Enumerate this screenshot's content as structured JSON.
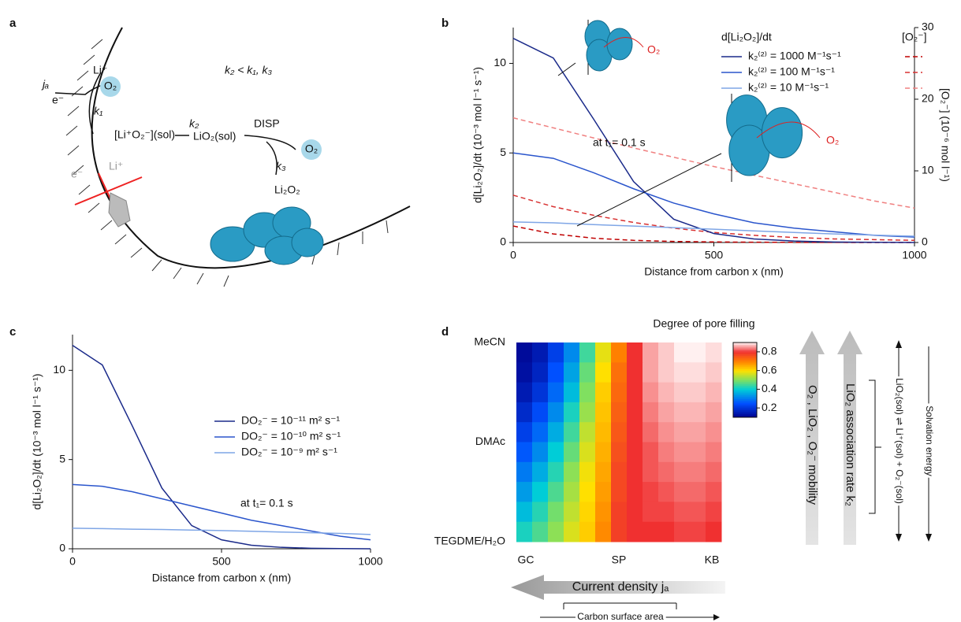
{
  "diagram_a": {
    "panel": "a",
    "ja": "jₐ",
    "e_in": "e⁻",
    "li_plus": "Li⁺",
    "o2_top": "O₂",
    "k1": "k₁",
    "complex": "[Li⁺O₂⁻](sol)",
    "k2": "k₂",
    "lio2": "LiO₂(sol)",
    "disp": "DISP",
    "o2_right": "O₂",
    "k3": "k₃",
    "li2o2": "Li₂O₂",
    "relation": "k₂ < k₁, k₃",
    "e_blocked": "e⁻",
    "li_blocked": "Li⁺"
  },
  "chart_data": [
    {
      "type": "line",
      "panel": "b",
      "annotation": "at t₁= 0.1 s",
      "inset_label_1": "O₂",
      "inset_label_2": "O₂",
      "xlabel": "Distance from carbon x (nm)",
      "ylabel": "d[Li₂O₂]/dt (10⁻³ mol l⁻¹ s⁻¹)",
      "y2label": "[O₂⁻] (10⁻⁶ mol l⁻¹)",
      "legend_titles": [
        "d[Li₂O₂]/dt",
        "[O₂⁻]"
      ],
      "x": [
        0,
        100,
        200,
        300,
        400,
        500,
        600,
        700,
        800,
        900,
        1000
      ],
      "xlim": [
        0,
        1000
      ],
      "xticks": [
        0,
        500,
        1000
      ],
      "ylim": [
        0,
        12
      ],
      "yticks": [
        0,
        5,
        10
      ],
      "y2lim": [
        0,
        30
      ],
      "y2ticks": [
        0,
        10,
        20,
        30
      ],
      "series": [
        {
          "name": "k₂⁽²⁾ = 1000 M⁻¹s⁻¹",
          "color": "#1a2a8a",
          "values": [
            11.4,
            10.3,
            6.9,
            3.4,
            1.3,
            0.5,
            0.2,
            0.08,
            0.03,
            0.01,
            0
          ]
        },
        {
          "name": "k₂⁽²⁾ = 100 M⁻¹s⁻¹",
          "color": "#2a55cc",
          "values": [
            5.0,
            4.7,
            3.9,
            3.0,
            2.2,
            1.6,
            1.1,
            0.8,
            0.6,
            0.4,
            0.3
          ]
        },
        {
          "name": "k₂⁽²⁾ = 10 M⁻¹s⁻¹",
          "color": "#7fa6e6",
          "values": [
            1.15,
            1.1,
            1.0,
            0.92,
            0.83,
            0.74,
            0.65,
            0.56,
            0.48,
            0.41,
            0.35
          ]
        }
      ],
      "o2_series": [
        {
          "color": "#c00000",
          "axis": "y2",
          "values": [
            2.3,
            1.2,
            0.6,
            0.3,
            0.15,
            0.08,
            0.04,
            0.02,
            0.01,
            0,
            0
          ]
        },
        {
          "color": "#d83030",
          "axis": "y2",
          "values": [
            6.6,
            5.0,
            3.8,
            2.8,
            2.0,
            1.4,
            1.0,
            0.7,
            0.5,
            0.4,
            0.3
          ]
        },
        {
          "color": "#f08080",
          "axis": "y2",
          "values": [
            17.4,
            16.0,
            14.6,
            13.2,
            11.9,
            10.6,
            9.4,
            8.2,
            7.0,
            5.8,
            4.8
          ]
        }
      ]
    },
    {
      "type": "line",
      "panel": "c",
      "annotation": "at t₁= 0.1 s",
      "xlabel": "Distance from carbon x (nm)",
      "ylabel": "d[Li₂O₂]/dt (10⁻³ mol l⁻¹ s⁻¹)",
      "x": [
        0,
        100,
        200,
        300,
        400,
        500,
        600,
        700,
        800,
        900,
        1000
      ],
      "xlim": [
        0,
        1000
      ],
      "xticks": [
        0,
        500,
        1000
      ],
      "ylim": [
        0,
        12
      ],
      "yticks": [
        0,
        5,
        10
      ],
      "series": [
        {
          "name": "DO₂⁻ = 10⁻¹¹ m² s⁻¹",
          "color": "#1a2a8a",
          "values": [
            11.4,
            10.3,
            6.9,
            3.4,
            1.3,
            0.5,
            0.2,
            0.08,
            0.03,
            0.01,
            0
          ]
        },
        {
          "name": "DO₂⁻ = 10⁻¹⁰ m² s⁻¹",
          "color": "#2a55cc",
          "values": [
            3.6,
            3.5,
            3.2,
            2.8,
            2.4,
            2.0,
            1.6,
            1.3,
            1.0,
            0.7,
            0.5
          ]
        },
        {
          "name": "DO₂⁻ = 10⁻⁹ m² s⁻¹",
          "color": "#7fa6e6",
          "values": [
            1.15,
            1.13,
            1.1,
            1.08,
            1.05,
            1.02,
            0.98,
            0.94,
            0.9,
            0.86,
            0.8
          ]
        }
      ]
    },
    {
      "type": "heatmap",
      "panel": "d",
      "title": "Degree of pore filling",
      "ylabels": [
        "MeCN",
        "DMAc",
        "TEGDME/H₂O"
      ],
      "xlabels": [
        "GC",
        "SP",
        "KB"
      ],
      "clim": [
        0.1,
        0.9
      ],
      "cticks": [
        0.2,
        0.4,
        0.6,
        0.8
      ],
      "values": [
        [
          0.12,
          0.15,
          0.22,
          0.32,
          0.45,
          0.58,
          0.7,
          0.8,
          0.86,
          0.88,
          0.9,
          0.9,
          0.89
        ],
        [
          0.13,
          0.17,
          0.25,
          0.35,
          0.48,
          0.6,
          0.72,
          0.8,
          0.86,
          0.88,
          0.89,
          0.89,
          0.88
        ],
        [
          0.15,
          0.2,
          0.28,
          0.38,
          0.5,
          0.62,
          0.73,
          0.8,
          0.85,
          0.87,
          0.88,
          0.88,
          0.87
        ],
        [
          0.18,
          0.24,
          0.32,
          0.42,
          0.52,
          0.63,
          0.74,
          0.8,
          0.84,
          0.86,
          0.87,
          0.87,
          0.86
        ],
        [
          0.22,
          0.28,
          0.36,
          0.45,
          0.55,
          0.64,
          0.75,
          0.8,
          0.83,
          0.85,
          0.86,
          0.86,
          0.85
        ],
        [
          0.26,
          0.32,
          0.4,
          0.48,
          0.57,
          0.65,
          0.76,
          0.8,
          0.82,
          0.84,
          0.85,
          0.85,
          0.84
        ],
        [
          0.3,
          0.36,
          0.43,
          0.51,
          0.59,
          0.66,
          0.77,
          0.8,
          0.82,
          0.83,
          0.84,
          0.84,
          0.83
        ],
        [
          0.34,
          0.4,
          0.46,
          0.53,
          0.6,
          0.67,
          0.77,
          0.8,
          0.81,
          0.82,
          0.83,
          0.83,
          0.82
        ],
        [
          0.38,
          0.43,
          0.49,
          0.55,
          0.61,
          0.68,
          0.78,
          0.8,
          0.81,
          0.81,
          0.82,
          0.82,
          0.81
        ],
        [
          0.42,
          0.46,
          0.51,
          0.57,
          0.62,
          0.69,
          0.78,
          0.8,
          0.8,
          0.8,
          0.81,
          0.81,
          0.8
        ]
      ],
      "current_density": "Current density jₐ",
      "surface_area": "Carbon surface area",
      "mobility": "O₂ , LiO₂ , O₂⁻ mobility",
      "association": "LiO₂ association rate k₂",
      "equilibrium": "LiO₂(sol) ⇌ Li⁺(sol) + O₂⁻(sol)",
      "solvation": "Solvation energy"
    }
  ]
}
